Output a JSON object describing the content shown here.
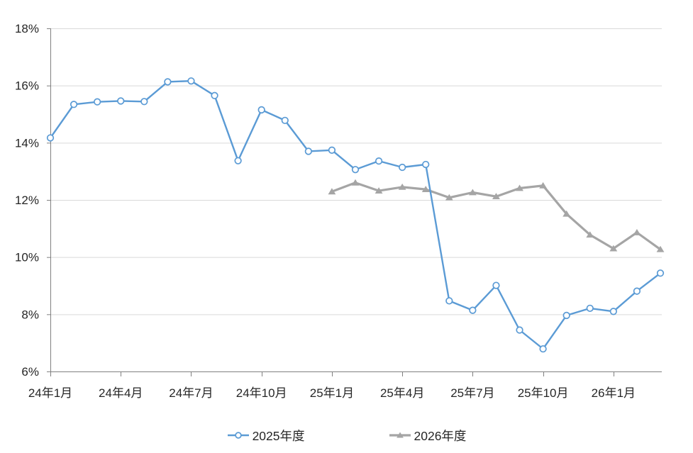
{
  "chart_data": {
    "type": "line",
    "title": "",
    "grid": "horizontal",
    "legend_position": "bottom",
    "num_points": 27,
    "ylim": [
      6,
      18
    ],
    "y_axis": {
      "unit": "%",
      "min": 6,
      "max": 18,
      "step": 2,
      "tick_labels": [
        "18%",
        "16%",
        "14%",
        "12%",
        "10%",
        "8%",
        "6%"
      ]
    },
    "x_axis": {
      "tick_labels": [
        "24年1月",
        "24年4月",
        "24年7月",
        "24年10月",
        "25年1月",
        "25年4月",
        "25年7月",
        "25年10月",
        "26年1月"
      ],
      "months_per_tick": 3
    },
    "series": [
      {
        "name": "2025年度",
        "color": "#5B9BD5",
        "marker": "circle",
        "marker_fill": "#FFFFFF",
        "start_index": 0,
        "values": [
          14.17,
          15.34,
          15.43,
          15.46,
          15.44,
          16.13,
          16.16,
          15.65,
          13.37,
          15.15,
          14.78,
          13.7,
          13.74,
          13.06,
          13.36,
          13.14,
          13.24,
          8.47,
          8.14,
          9.01,
          7.45,
          6.79,
          7.96,
          8.21,
          8.1,
          8.81,
          9.44
        ]
      },
      {
        "name": "2026年度",
        "color": "#A5A5A5",
        "marker": "triangle",
        "marker_fill": "#A5A5A5",
        "start_index": 12,
        "values": [
          12.29,
          12.6,
          12.32,
          12.45,
          12.37,
          12.08,
          12.26,
          12.12,
          12.41,
          12.5,
          11.51,
          10.78,
          10.3,
          10.86,
          10.27
        ]
      }
    ]
  },
  "styles": {
    "grid_color": "#D9D9D9",
    "axis_color": "#808080",
    "label_color": "#262626",
    "background": "#FFFFFF"
  }
}
